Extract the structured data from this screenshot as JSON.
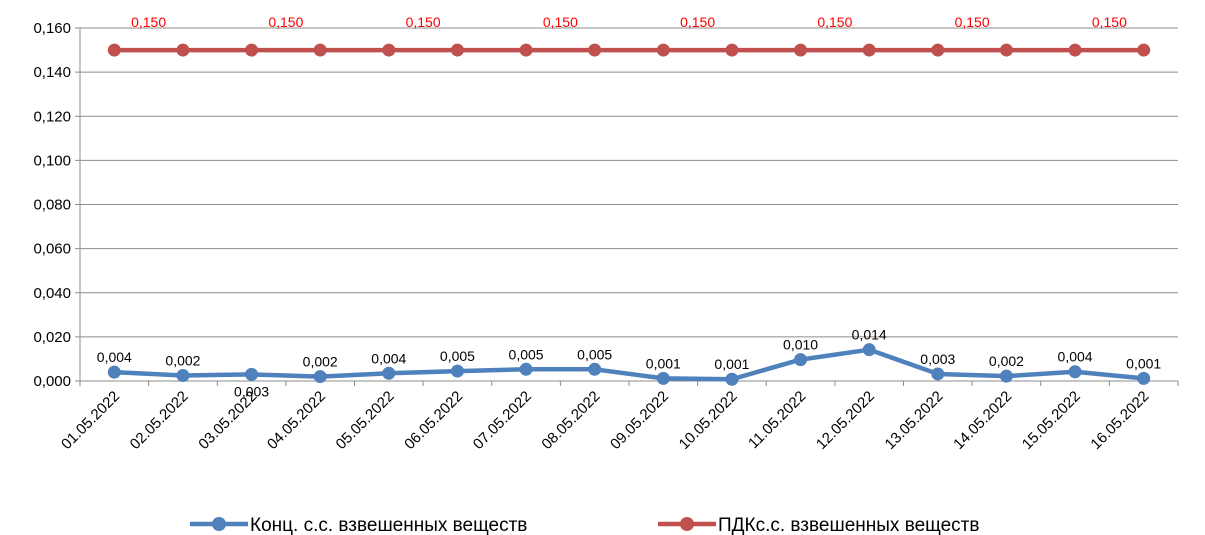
{
  "chart_data": {
    "type": "line",
    "categories": [
      "01.05.2022",
      "02.05.2022",
      "03.05.2022",
      "04.05.2022",
      "05.05.2022",
      "06.05.2022",
      "07.05.2022",
      "08.05.2022",
      "09.05.2022",
      "10.05.2022",
      "11.05.2022",
      "12.05.2022",
      "13.05.2022",
      "14.05.2022",
      "15.05.2022",
      "16.05.2022"
    ],
    "ylim": [
      0,
      0.16
    ],
    "yticks": [
      "0,000",
      "0,020",
      "0,040",
      "0,060",
      "0,080",
      "0,100",
      "0,120",
      "0,140",
      "0,160"
    ],
    "grid": true,
    "legend_position": "bottom",
    "series": [
      {
        "name": "Конц. с.с. взвешенных веществ",
        "color": "#4F81BD",
        "values": [
          0.004,
          0.0025,
          0.003,
          0.002,
          0.0035,
          0.0045,
          0.0053,
          0.0053,
          0.0012,
          0.0008,
          0.0097,
          0.0142,
          0.0032,
          0.0022,
          0.0042,
          0.0012
        ],
        "labels": [
          "0,004",
          "0,002",
          "0,003",
          "0,002",
          "0,004",
          "0,005",
          "0,005",
          "0,005",
          "0,001",
          "0,001",
          "0,010",
          "0,014",
          "0,003",
          "0,002",
          "0,004",
          "0,001"
        ]
      },
      {
        "name": "ПДКс.с. взвешенных веществ",
        "color": "#C0504D",
        "label_color": "#FF0000",
        "values": [
          0.15,
          0.15,
          0.15,
          0.15,
          0.15,
          0.15,
          0.15,
          0.15,
          0.15,
          0.15,
          0.15,
          0.15,
          0.15,
          0.15,
          0.15,
          0.15
        ],
        "labels": [
          "0,150",
          "",
          "0,150",
          "",
          "0,150",
          "",
          "0,150",
          "",
          "0,150",
          "",
          "0,150",
          "",
          "0,150",
          "",
          "0,150",
          ""
        ]
      }
    ]
  }
}
